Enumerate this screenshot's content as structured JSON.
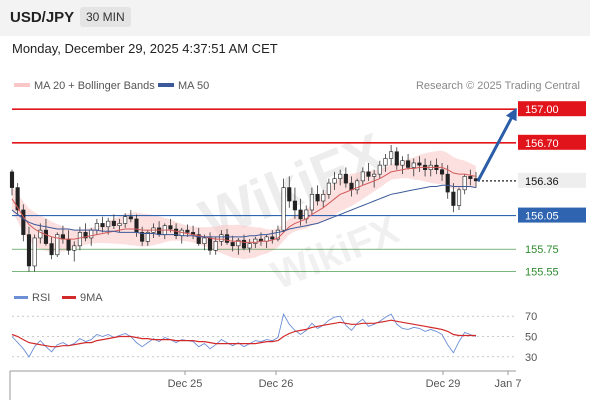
{
  "header": {
    "symbol": "USD/JPY",
    "timeframe": "30 MIN"
  },
  "datetime": "Monday, December 29, 2025 4:37:51 AM CET",
  "legend": {
    "ma20_label": "MA 20 + Bollinger Bands",
    "ma50_label": "MA 50"
  },
  "credit": "Research © 2025 Trading Central",
  "watermark": "WikiFX",
  "colors": {
    "resistance": "#e1141b",
    "support": "#2e64b0",
    "target": "#2f8a2f",
    "ma20": "#d45a5a",
    "ma50": "#3c5a99",
    "bollinger": "#f9c7c7",
    "rsi": "#6c8fd6",
    "rsi_ma": "#d22a2a",
    "arrow": "#2a5ca8"
  },
  "chart_data": [
    {
      "type": "candlestick",
      "title": "USD/JPY",
      "ylim": [
        155.43,
        157.1
      ],
      "x_ticks": [
        "Dec 25",
        "Dec 26",
        "Dec 29",
        "Jan 7"
      ],
      "current_price": "156.36",
      "levels": [
        {
          "label": "157.00",
          "value": 157.0,
          "kind": "resistance"
        },
        {
          "label": "156.70",
          "value": 156.7,
          "kind": "resistance"
        },
        {
          "label": "156.36",
          "value": 156.36,
          "kind": "current"
        },
        {
          "label": "156.05",
          "value": 156.05,
          "kind": "support"
        },
        {
          "label": "155.75",
          "value": 155.75,
          "kind": "target"
        },
        {
          "label": "155.55",
          "value": 155.55,
          "kind": "target"
        }
      ],
      "candles": [
        [
          156.44,
          156.46,
          156.23,
          156.3
        ],
        [
          156.3,
          156.34,
          156.06,
          156.1
        ],
        [
          156.1,
          156.15,
          155.82,
          155.88
        ],
        [
          155.88,
          155.95,
          155.55,
          155.6
        ],
        [
          155.6,
          155.88,
          155.55,
          155.85
        ],
        [
          155.85,
          155.98,
          155.8,
          155.92
        ],
        [
          155.92,
          156.02,
          155.78,
          155.8
        ],
        [
          155.8,
          155.86,
          155.66,
          155.7
        ],
        [
          155.7,
          155.9,
          155.68,
          155.88
        ],
        [
          155.88,
          155.96,
          155.8,
          155.84
        ],
        [
          155.84,
          155.92,
          155.7,
          155.74
        ],
        [
          155.74,
          155.82,
          155.64,
          155.78
        ],
        [
          155.78,
          155.95,
          155.74,
          155.9
        ],
        [
          155.9,
          155.98,
          155.82,
          155.85
        ],
        [
          155.85,
          155.94,
          155.78,
          155.92
        ],
        [
          155.92,
          156.02,
          155.88,
          155.98
        ],
        [
          155.98,
          156.04,
          155.9,
          155.95
        ],
        [
          155.95,
          156.03,
          155.88,
          156.0
        ],
        [
          156.0,
          156.06,
          155.93,
          155.96
        ],
        [
          155.96,
          156.02,
          155.9,
          155.98
        ],
        [
          155.98,
          156.07,
          155.94,
          156.04
        ],
        [
          156.04,
          156.1,
          155.99,
          156.02
        ],
        [
          156.02,
          156.06,
          155.86,
          155.9
        ],
        [
          155.9,
          155.95,
          155.78,
          155.82
        ],
        [
          155.82,
          155.92,
          155.78,
          155.9
        ],
        [
          155.9,
          155.98,
          155.85,
          155.94
        ],
        [
          155.94,
          156.0,
          155.86,
          155.88
        ],
        [
          155.88,
          155.98,
          155.84,
          155.96
        ],
        [
          155.96,
          156.02,
          155.9,
          155.93
        ],
        [
          155.93,
          155.98,
          155.84,
          155.87
        ],
        [
          155.87,
          155.94,
          155.8,
          155.92
        ],
        [
          155.92,
          155.97,
          155.86,
          155.9
        ],
        [
          155.9,
          155.96,
          155.84,
          155.88
        ],
        [
          155.88,
          155.94,
          155.78,
          155.8
        ],
        [
          155.8,
          155.88,
          155.74,
          155.85
        ],
        [
          155.85,
          155.9,
          155.7,
          155.74
        ],
        [
          155.74,
          155.86,
          155.7,
          155.82
        ],
        [
          155.82,
          155.92,
          155.78,
          155.88
        ],
        [
          155.88,
          155.93,
          155.79,
          155.81
        ],
        [
          155.81,
          155.87,
          155.73,
          155.78
        ],
        [
          155.78,
          155.85,
          155.7,
          155.83
        ],
        [
          155.83,
          155.88,
          155.74,
          155.76
        ],
        [
          155.76,
          155.84,
          155.72,
          155.8
        ],
        [
          155.8,
          155.86,
          155.76,
          155.84
        ],
        [
          155.84,
          155.9,
          155.78,
          155.82
        ],
        [
          155.82,
          155.88,
          155.76,
          155.86
        ],
        [
          155.86,
          155.92,
          155.8,
          155.84
        ],
        [
          155.84,
          155.96,
          155.82,
          155.92
        ],
        [
          155.92,
          156.38,
          155.9,
          156.3
        ],
        [
          156.3,
          156.4,
          156.12,
          156.18
        ],
        [
          156.18,
          156.3,
          156.02,
          156.1
        ],
        [
          156.1,
          156.2,
          155.96,
          156.02
        ],
        [
          156.02,
          156.14,
          155.98,
          156.1
        ],
        [
          156.1,
          156.3,
          156.06,
          156.24
        ],
        [
          156.24,
          156.32,
          156.14,
          156.18
        ],
        [
          156.18,
          156.28,
          156.12,
          156.24
        ],
        [
          156.24,
          156.38,
          156.2,
          156.34
        ],
        [
          156.34,
          156.44,
          156.28,
          156.38
        ],
        [
          156.38,
          156.46,
          156.32,
          156.42
        ],
        [
          156.42,
          156.48,
          156.3,
          156.34
        ],
        [
          156.34,
          156.4,
          156.22,
          156.28
        ],
        [
          156.28,
          156.38,
          156.24,
          156.36
        ],
        [
          156.36,
          156.48,
          156.32,
          156.44
        ],
        [
          156.44,
          156.52,
          156.36,
          156.4
        ],
        [
          156.4,
          156.46,
          156.3,
          156.42
        ],
        [
          156.42,
          156.54,
          156.38,
          156.5
        ],
        [
          156.5,
          156.6,
          156.44,
          156.56
        ],
        [
          156.56,
          156.68,
          156.5,
          156.62
        ],
        [
          156.62,
          156.66,
          156.46,
          156.5
        ],
        [
          156.5,
          156.58,
          156.42,
          156.54
        ],
        [
          156.54,
          156.6,
          156.46,
          156.48
        ],
        [
          156.48,
          156.56,
          156.4,
          156.52
        ],
        [
          156.52,
          156.58,
          156.44,
          156.5
        ],
        [
          156.5,
          156.56,
          156.4,
          156.46
        ],
        [
          156.46,
          156.54,
          156.4,
          156.5
        ],
        [
          156.5,
          156.56,
          156.42,
          156.46
        ],
        [
          156.46,
          156.52,
          156.36,
          156.42
        ],
        [
          156.42,
          156.5,
          156.2,
          156.26
        ],
        [
          156.26,
          156.34,
          156.08,
          156.14
        ],
        [
          156.14,
          156.3,
          156.1,
          156.28
        ],
        [
          156.28,
          156.42,
          156.24,
          156.4
        ],
        [
          156.4,
          156.46,
          156.32,
          156.38
        ],
        [
          156.38,
          156.44,
          156.3,
          156.36
        ]
      ],
      "ma20": [
        156.2,
        156.12,
        156.04,
        155.97,
        155.93,
        155.9,
        155.88,
        155.86,
        155.85,
        155.84,
        155.84,
        155.84,
        155.85,
        155.86,
        155.87,
        155.88,
        155.89,
        155.9,
        155.91,
        155.92,
        155.93,
        155.93,
        155.93,
        155.92,
        155.92,
        155.92,
        155.92,
        155.92,
        155.92,
        155.91,
        155.9,
        155.89,
        155.88,
        155.87,
        155.86,
        155.85,
        155.84,
        155.84,
        155.83,
        155.82,
        155.82,
        155.81,
        155.81,
        155.81,
        155.82,
        155.82,
        155.83,
        155.85,
        155.9,
        155.95,
        155.98,
        156.0,
        156.02,
        156.06,
        156.09,
        156.12,
        156.16,
        156.2,
        156.24,
        156.26,
        156.28,
        156.3,
        156.32,
        156.34,
        156.36,
        156.38,
        156.41,
        156.44,
        156.45,
        156.46,
        156.47,
        156.47,
        156.48,
        156.48,
        156.48,
        156.48,
        156.48,
        156.46,
        156.43,
        156.42,
        156.42,
        156.41,
        156.4
      ],
      "ma50": [
        156.1,
        156.06,
        156.02,
        155.99,
        155.97,
        155.96,
        155.95,
        155.94,
        155.93,
        155.93,
        155.93,
        155.92,
        155.92,
        155.92,
        155.92,
        155.92,
        155.91,
        155.91,
        155.91,
        155.9,
        155.9,
        155.9,
        155.9,
        155.89,
        155.89,
        155.89,
        155.88,
        155.88,
        155.88,
        155.88,
        155.87,
        155.87,
        155.87,
        155.86,
        155.86,
        155.86,
        155.86,
        155.86,
        155.86,
        155.86,
        155.86,
        155.86,
        155.87,
        155.87,
        155.88,
        155.88,
        155.89,
        155.9,
        155.91,
        155.93,
        155.94,
        155.95,
        155.96,
        155.97,
        155.98,
        156.0,
        156.02,
        156.04,
        156.06,
        156.08,
        156.1,
        156.12,
        156.14,
        156.16,
        156.18,
        156.2,
        156.22,
        156.24,
        156.25,
        156.26,
        156.27,
        156.28,
        156.29,
        156.3,
        156.31,
        156.31,
        156.32,
        156.32,
        156.31,
        156.31,
        156.31,
        156.31,
        156.3
      ],
      "forecast": {
        "from": 156.36,
        "to": 157.0
      }
    },
    {
      "type": "line",
      "title": "RSI",
      "legend": [
        "RSI",
        "9MA"
      ],
      "ylim": [
        22,
        80
      ],
      "y_ticks": [
        "70",
        "50",
        "30"
      ],
      "series": [
        {
          "name": "RSI",
          "values": [
            50,
            44,
            38,
            30,
            40,
            46,
            40,
            35,
            42,
            44,
            41,
            43,
            48,
            45,
            47,
            52,
            50,
            52,
            49,
            51,
            53,
            50,
            44,
            40,
            44,
            48,
            45,
            49,
            47,
            44,
            47,
            46,
            45,
            40,
            43,
            38,
            42,
            47,
            44,
            41,
            44,
            40,
            43,
            46,
            45,
            47,
            46,
            49,
            72,
            62,
            56,
            52,
            56,
            63,
            58,
            61,
            66,
            69,
            70,
            61,
            56,
            63,
            67,
            60,
            62,
            65,
            69,
            72,
            62,
            58,
            57,
            59,
            58,
            55,
            57,
            55,
            52,
            42,
            34,
            45,
            54,
            52,
            50
          ]
        },
        {
          "name": "9MA",
          "values": [
            52,
            50,
            47,
            44,
            43,
            42,
            41,
            40,
            40,
            41,
            41,
            42,
            43,
            44,
            44,
            46,
            47,
            48,
            49,
            50,
            50,
            50,
            49,
            48,
            48,
            47,
            47,
            47,
            47,
            46,
            46,
            46,
            46,
            45,
            45,
            44,
            43,
            43,
            43,
            43,
            43,
            43,
            43,
            43,
            44,
            45,
            45,
            46,
            50,
            53,
            55,
            56,
            57,
            59,
            60,
            61,
            62,
            63,
            64,
            63,
            62,
            62,
            63,
            63,
            63,
            64,
            65,
            66,
            65,
            64,
            63,
            62,
            61,
            60,
            59,
            58,
            57,
            55,
            52,
            51,
            51,
            51,
            51
          ]
        }
      ]
    }
  ]
}
